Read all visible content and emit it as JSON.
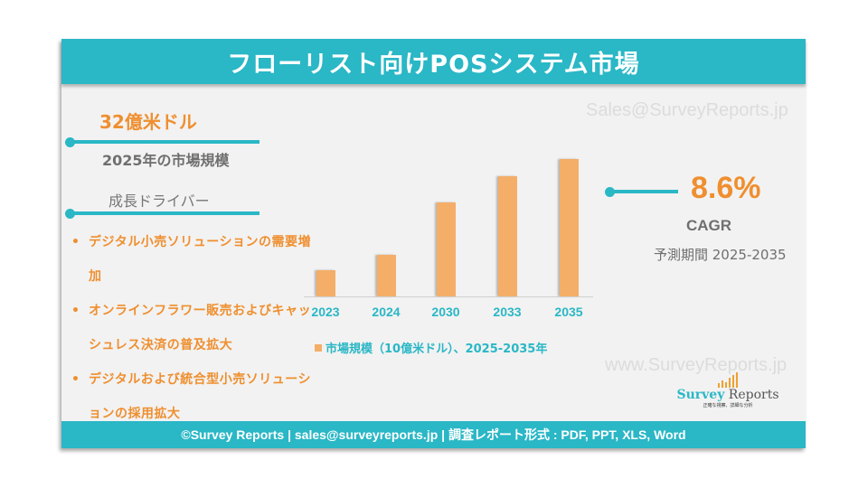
{
  "header": {
    "title": "フローリスト向けPOSシステム市場"
  },
  "watermarks": {
    "email": "Sales@SurveyReports.jp",
    "website": "www.SurveyReports.jp"
  },
  "market": {
    "value": "32億米ドル",
    "label": "2025年の市場規模"
  },
  "drivers": {
    "title": "成長ドライバー",
    "bullet": "•",
    "items": [
      "デジタル小売ソリューションの需要増加",
      "オンラインフラワー販売およびキャッシュレス決済の普及拡大",
      "デジタルおよび統合型小売ソリューションの採用拡大"
    ]
  },
  "cagr": {
    "value": "8.6%",
    "label": "CAGR",
    "period": "予測期間 2025-2035"
  },
  "logo": {
    "name_part1": "Survey",
    "name_part2": " Reports",
    "tagline": "正確な視察、詳細な分析"
  },
  "footer": {
    "text": "©Survey Reports | sales@surveyreports.jp |  調査レポート形式 : PDF, PPT, XLS, Word"
  },
  "colors": {
    "accent": "#2ab7c6",
    "orange": "#ef8f2f",
    "bar": "#f4ae68",
    "background": "#f2f2f2"
  },
  "chart_data": {
    "type": "bar",
    "title": "",
    "categories": [
      "2023",
      "2024",
      "2030",
      "2033",
      "2035"
    ],
    "series": [
      {
        "name": "市場規模（10億米ドル）、2025-2035年",
        "values": [
          1.4,
          2.2,
          5.0,
          6.4,
          7.3
        ]
      }
    ],
    "xlabel": "",
    "ylabel": "市場規模（10億米ドル）",
    "ylim": [
      0,
      8
    ],
    "grid": false,
    "legend_position": "bottom",
    "legend": [
      "市場規模（10億米ドル）、2025-2035年"
    ],
    "annotations": [
      "32億米ドル (2025年の市場規模)",
      "CAGR 8.6% (予測期間 2025-2035)"
    ]
  }
}
